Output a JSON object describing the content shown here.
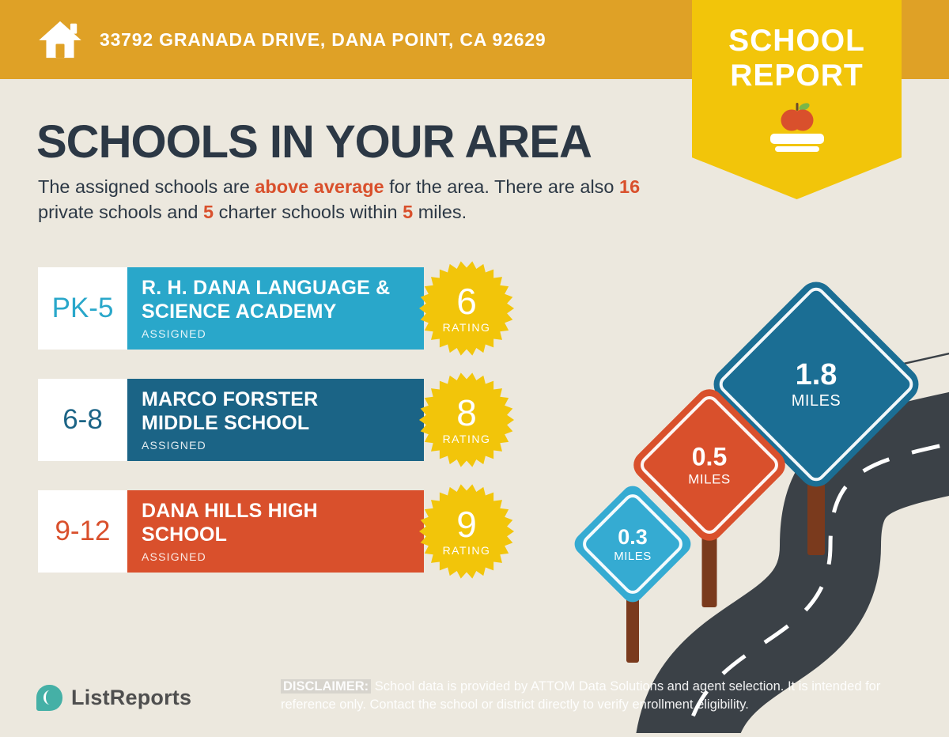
{
  "colors": {
    "gold_bar": "#DFA126",
    "badge_yellow": "#F2C50A",
    "background": "#ECE8DE",
    "heading": "#2C3845",
    "accent_orange": "#D9502C",
    "school_teal": "#29A7CA",
    "school_dark_blue": "#1B6486",
    "sign_cyan": "#35ABD2",
    "sign_blue": "#1B6E94",
    "road_dark": "#3B4147",
    "post_brown": "#7A3A1D",
    "brand_teal": "#45B0A6"
  },
  "header": {
    "address": "33792 GRANADA DRIVE, DANA POINT, CA 92629",
    "badge_line1": "SCHOOL",
    "badge_line2": "REPORT"
  },
  "main": {
    "title": "SCHOOLS IN YOUR AREA",
    "subtitle": {
      "t1": "The assigned schools are ",
      "h1": "above average",
      "t2": " for the area. There are also ",
      "h2": "16",
      "t3": " private schools and ",
      "h3": "5",
      "t4": " charter schools within ",
      "h4": "5",
      "t5": " miles."
    }
  },
  "labels": {
    "rating": "RATING"
  },
  "schools": [
    {
      "grades": "PK-5",
      "name_line1": "R. H. DANA LANGUAGE &",
      "name_line2": "SCIENCE ACADEMY",
      "status": "ASSIGNED",
      "rating": "6"
    },
    {
      "grades": "6-8",
      "name_line1": "MARCO FORSTER",
      "name_line2": "MIDDLE SCHOOL",
      "status": "ASSIGNED",
      "rating": "8"
    },
    {
      "grades": "9-12",
      "name_line1": "DANA HILLS HIGH",
      "name_line2": "SCHOOL",
      "status": "ASSIGNED",
      "rating": "9"
    }
  ],
  "signs": [
    {
      "distance": "0.3",
      "unit": "MILES"
    },
    {
      "distance": "0.5",
      "unit": "MILES"
    },
    {
      "distance": "1.8",
      "unit": "MILES"
    }
  ],
  "footer": {
    "brand": "ListReports",
    "disclaimer_label": "DISCLAIMER:",
    "disclaimer_text": " School data is provided by ATTOM Data Solutions and agent selection. It is intended for reference only. Contact the school or district directly to verify enrollment eligibility."
  }
}
